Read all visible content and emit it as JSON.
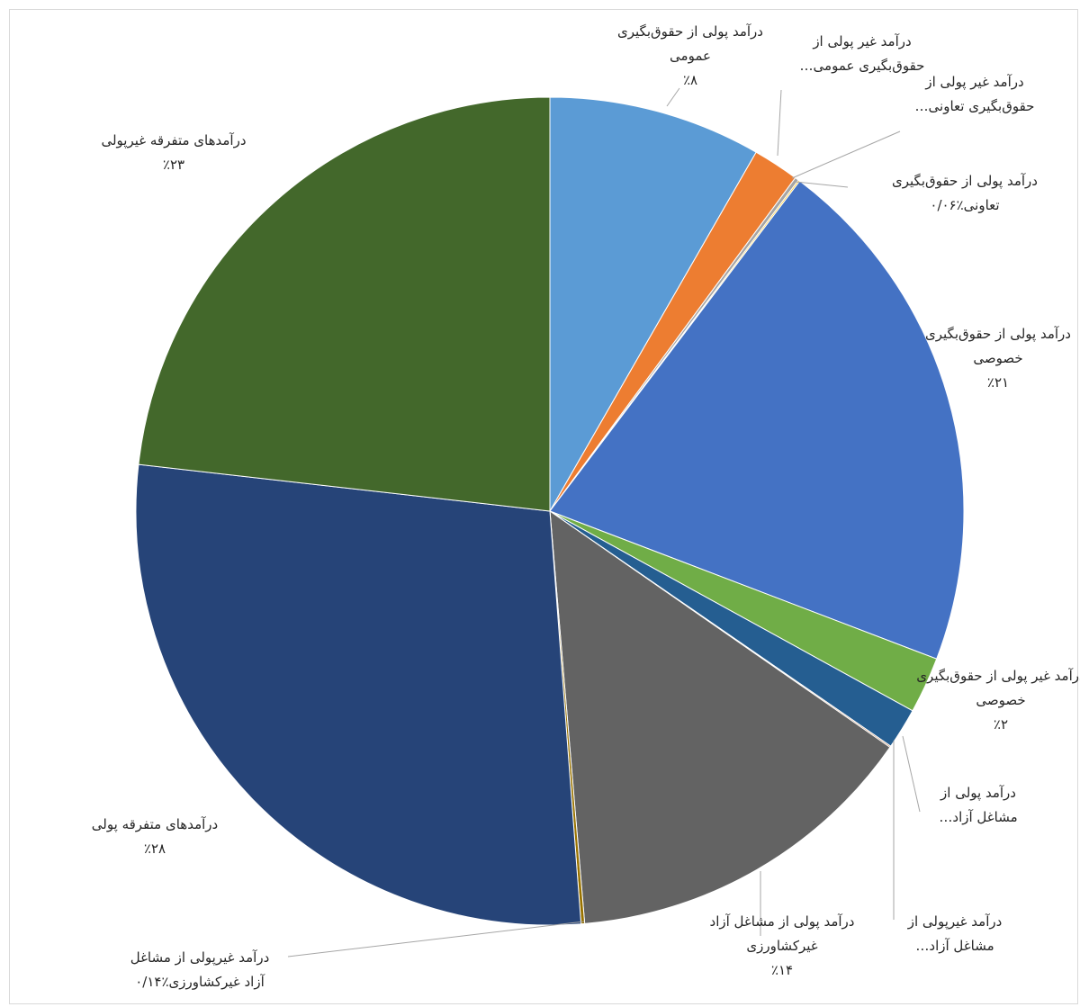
{
  "chart_data": {
    "type": "pie",
    "start_angle_deg": 0,
    "direction": "clockwise",
    "slices": [
      {
        "label": "درآمد پولی از حقوق‌بگیری عمومی",
        "value": 8.3,
        "value_label": "٪۸",
        "color": "#5b9bd5"
      },
      {
        "label": "درآمد غیر پولی از حقوق‌بگیری عمومی…",
        "value": 1.8,
        "value_label": "",
        "color": "#ed7d31"
      },
      {
        "label": "درآمد غیر پولی از حقوق‌بگیری تعاونی…",
        "value": 0.15,
        "value_label": "",
        "color": "#a5a5a5"
      },
      {
        "label": "درآمد پولی از حقوق‌بگیری تعاونی",
        "value": 0.06,
        "value_label": "٪۰/۰۶",
        "color": "#ffc000"
      },
      {
        "label": "درآمد پولی از حقوق‌بگیری خصوصی",
        "value": 20.5,
        "value_label": "٪۲۱",
        "color": "#4472c4"
      },
      {
        "label": "درآمد غیر پولی از حقوق‌بگیری خصوصی",
        "value": 2.2,
        "value_label": "٪۲",
        "color": "#70ad47"
      },
      {
        "label": "درآمد پولی از مشاغل آزاد…",
        "value": 1.6,
        "value_label": "",
        "color": "#255e91"
      },
      {
        "label": "درآمد غیرپولی از مشاغل آزاد…",
        "value": 0.05,
        "value_label": "",
        "color": "#9e480e"
      },
      {
        "label": "درآمد پولی از مشاغل آزاد غیرکشاورزی",
        "value": 14.0,
        "value_label": "٪۱۴",
        "color": "#636363"
      },
      {
        "label": "درآمد غیرپولی از مشاغل آزاد غیرکشاورزی",
        "value": 0.14,
        "value_label": "٪۰/۱۴",
        "color": "#997300"
      },
      {
        "label": "درآمدهای متفرقه پولی",
        "value": 28.0,
        "value_label": "٪۲۸",
        "color": "#264478"
      },
      {
        "label": "درآمدهای متفرقه غیرپولی",
        "value": 23.2,
        "value_label": "٪۲۳",
        "color": "#43682b"
      }
    ]
  },
  "labels": [
    {
      "lines": [
        "درآمد پولی از حقوق‌بگیری",
        "عمومی",
        "٪۸"
      ]
    },
    {
      "lines": [
        "درآمد غیر پولی از",
        "حقوق‌بگیری عمومی…"
      ]
    },
    {
      "lines": [
        "درآمد غیر پولی از",
        "حقوق‌بگیری تعاونی…"
      ]
    },
    {
      "lines": [
        "درآمد پولی از حقوق‌بگیری",
        "تعاونی٪۰/۰۶"
      ]
    },
    {
      "lines": [
        "درآمد پولی از حقوق‌بگیری",
        "خصوصی",
        "٪۲۱"
      ]
    },
    {
      "lines": [
        "درآمد غیر پولی از حقوق‌بگیری",
        "خصوصی",
        "٪۲"
      ]
    },
    {
      "lines": [
        "درآمد پولی از",
        "مشاغل آزاد…"
      ]
    },
    {
      "lines": [
        "درآمد غیرپولی از",
        "مشاغل آزاد…"
      ]
    },
    {
      "lines": [
        "درآمد پولی از مشاغل آزاد",
        "غیرکشاورزی",
        "٪۱۴"
      ]
    },
    {
      "lines": [
        "درآمد غیرپولی از مشاغل",
        "آزاد غیرکشاورزی٪۰/۱۴"
      ]
    },
    {
      "lines": [
        "درآمدهای متفرقه پولی",
        "٪۲۸"
      ]
    },
    {
      "lines": [
        "درآمدهای متفرقه غیرپولی",
        "٪۲۳"
      ]
    }
  ]
}
